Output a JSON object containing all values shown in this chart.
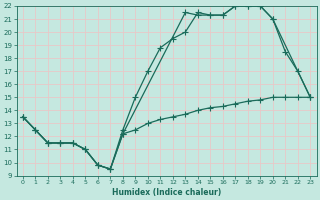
{
  "xlabel": "Humidex (Indice chaleur)",
  "xlim": [
    -0.5,
    23.5
  ],
  "ylim": [
    9,
    22
  ],
  "xticks": [
    0,
    1,
    2,
    3,
    4,
    5,
    6,
    7,
    8,
    9,
    10,
    11,
    12,
    13,
    14,
    15,
    16,
    17,
    18,
    19,
    20,
    21,
    22,
    23
  ],
  "yticks": [
    9,
    10,
    11,
    12,
    13,
    14,
    15,
    16,
    17,
    18,
    19,
    20,
    21,
    22
  ],
  "bg_color": "#c5e8e0",
  "line_color": "#1a6b5a",
  "grid_color": "#e8c8c8",
  "line1_x": [
    0,
    1,
    2,
    3,
    4,
    5,
    6,
    7,
    8,
    9,
    10,
    11,
    12,
    13,
    14,
    15,
    16,
    17,
    18,
    19,
    20,
    21,
    22,
    23
  ],
  "line1_y": [
    13.5,
    12.5,
    11.5,
    11.5,
    11.5,
    11.0,
    9.8,
    9.5,
    12.5,
    15.0,
    17.0,
    18.8,
    19.5,
    20.0,
    21.5,
    21.3,
    21.3,
    22.0,
    22.0,
    22.0,
    21.0,
    18.5,
    17.0,
    15.0
  ],
  "line2_x": [
    0,
    1,
    2,
    3,
    4,
    5,
    6,
    7,
    8,
    9,
    10,
    11,
    12,
    13,
    14,
    15,
    16,
    17,
    18,
    19,
    20,
    21,
    22,
    23
  ],
  "line2_y": [
    13.5,
    12.5,
    11.5,
    11.5,
    11.5,
    11.0,
    9.8,
    9.5,
    12.2,
    12.5,
    13.0,
    13.3,
    13.5,
    13.7,
    14.0,
    14.2,
    14.3,
    14.5,
    14.7,
    14.8,
    15.0,
    15.0,
    15.0,
    15.0
  ],
  "line3_x": [
    0,
    1,
    2,
    3,
    4,
    5,
    6,
    7,
    8,
    13,
    14,
    15,
    16,
    17,
    18,
    19,
    20,
    23
  ],
  "line3_y": [
    13.5,
    12.5,
    11.5,
    11.5,
    11.5,
    11.0,
    9.8,
    9.5,
    12.2,
    21.5,
    21.3,
    21.3,
    21.3,
    22.0,
    22.0,
    22.0,
    21.0,
    15.0
  ]
}
